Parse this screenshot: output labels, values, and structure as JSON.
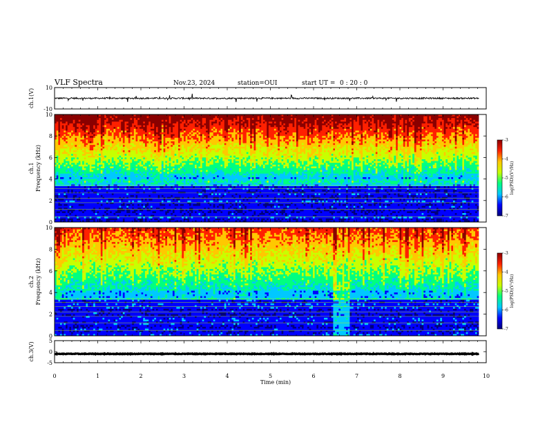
{
  "header": {
    "title": "VLF Spectra",
    "date": "Nov.23, 2024",
    "station": "station=OUI",
    "start_label": "start  UT =",
    "start_time": "0 : 20 : 0"
  },
  "chart_data": [
    {
      "type": "line",
      "panel": "waveform-ch1",
      "ylabel": "ch.1(V)",
      "ylim": [
        -10,
        10
      ],
      "yticks": [
        "10",
        "-10"
      ],
      "xlim": [
        0,
        10
      ],
      "data_end_min": 9.83,
      "baseline": 0.0,
      "noise_amplitude": 0.7,
      "spike_amplitude": 4
    },
    {
      "type": "heatmap",
      "panel": "spectrogram-ch1",
      "ylabel_line1": "ch.1",
      "ylabel_line2": "Frequency (kHz)",
      "ylim": [
        0,
        10
      ],
      "yticks": [
        "0",
        "2",
        "4",
        "6",
        "8",
        "10"
      ],
      "xlim": [
        0,
        10
      ],
      "data_end_min": 9.83,
      "colorbar": {
        "label": "log(PSD)(V²/Hz)",
        "range": [
          -7,
          -3
        ],
        "ticks": [
          "-3",
          "-4",
          "-5",
          "-6",
          "-7"
        ]
      },
      "colors": [
        "#00007a",
        "#0000ff",
        "#00c8ff",
        "#00ff80",
        "#c8ff00",
        "#ffc800",
        "#ff2000",
        "#8a0000"
      ]
    },
    {
      "type": "heatmap",
      "panel": "spectrogram-ch2",
      "ylabel_line1": "ch.2",
      "ylabel_line2": "Frequency (kHz)",
      "ylim": [
        0,
        10
      ],
      "yticks": [
        "0",
        "2",
        "4",
        "6",
        "8",
        "10"
      ],
      "xlim": [
        0,
        10
      ],
      "data_end_min": 9.83,
      "colorbar": {
        "label": "log(PSD)(V²/Hz)",
        "range": [
          -7,
          -3
        ],
        "ticks": [
          "-3",
          "-4",
          "-5",
          "-6",
          "-7"
        ]
      },
      "colors": [
        "#00007a",
        "#0000ff",
        "#00c8ff",
        "#00ff80",
        "#c8ff00",
        "#ffc800",
        "#ff2000",
        "#8a0000"
      ]
    },
    {
      "type": "line",
      "panel": "waveform-ch3",
      "ylabel": "ch.3(V)",
      "ylim": [
        -5,
        5
      ],
      "yticks": [
        "5",
        "0",
        "-5"
      ],
      "xlim": [
        0,
        10
      ],
      "data_end_min": 9.83,
      "baseline": -1.0,
      "noise_amplitude": 0.15,
      "spike_amplitude": 0
    }
  ],
  "xaxis": {
    "label": "Time (min)",
    "ticks": [
      "0",
      "1",
      "2",
      "3",
      "4",
      "5",
      "6",
      "7",
      "8",
      "9",
      "10"
    ]
  }
}
